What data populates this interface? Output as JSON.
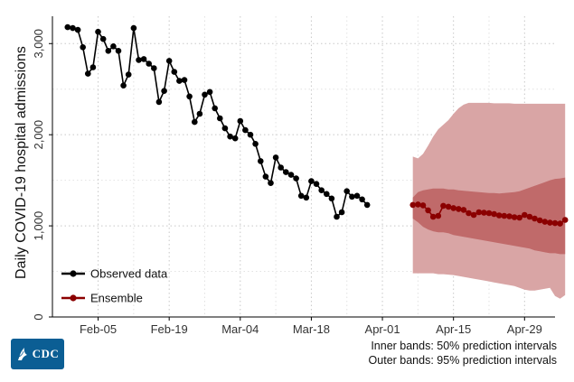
{
  "chart_data": {
    "type": "line",
    "title": "",
    "xlabel": "",
    "ylabel": "Daily COVID-19 hospital admissions",
    "ylim": [
      0,
      3300
    ],
    "yticks": [
      0,
      1000,
      2000,
      3000
    ],
    "ytick_labels": [
      "0",
      "1,000",
      "2,000",
      "3,000"
    ],
    "x_start": "Jan 30",
    "xlim_days": [
      -3,
      96
    ],
    "xticks": [
      {
        "label": "Feb-05",
        "day": 6
      },
      {
        "label": "Feb-19",
        "day": 20
      },
      {
        "label": "Mar-04",
        "day": 34
      },
      {
        "label": "Mar-18",
        "day": 48
      },
      {
        "label": "Apr-01",
        "day": 62
      },
      {
        "label": "Apr-15",
        "day": 76
      },
      {
        "label": "Apr-29",
        "day": 90
      }
    ],
    "legend_position": "bottom-left",
    "series": [
      {
        "name": "Observed data",
        "color": "#000000",
        "start_day": 0,
        "values": [
          3180,
          3170,
          3150,
          2960,
          2670,
          2740,
          3130,
          3050,
          2920,
          2970,
          2920,
          2540,
          2660,
          3170,
          2820,
          2830,
          2780,
          2730,
          2360,
          2480,
          2810,
          2690,
          2590,
          2600,
          2420,
          2140,
          2230,
          2440,
          2470,
          2290,
          2180,
          2070,
          1980,
          1960,
          2150,
          2050,
          2000,
          1900,
          1710,
          1540,
          1470,
          1750,
          1640,
          1590,
          1560,
          1520,
          1330,
          1310,
          1490,
          1460,
          1390,
          1350,
          1300,
          1100,
          1150,
          1380,
          1320,
          1330,
          1290,
          1230
        ]
      },
      {
        "name": "Ensemble",
        "color": "#8b0000",
        "start_day": 68,
        "values": [
          1230,
          1235,
          1225,
          1170,
          1100,
          1110,
          1220,
          1210,
          1195,
          1185,
          1175,
          1140,
          1120,
          1150,
          1145,
          1140,
          1130,
          1115,
          1110,
          1105,
          1095,
          1090,
          1120,
          1100,
          1080,
          1060,
          1045,
          1035,
          1030,
          1025,
          1065
        ],
        "inner_lower": [
          1080,
          1040,
          990,
          960,
          940,
          930,
          930,
          920,
          900,
          890,
          880,
          870,
          860,
          850,
          840,
          830,
          820,
          810,
          800,
          790,
          780,
          770,
          760,
          750,
          730,
          720,
          710,
          700,
          700,
          690,
          690
        ],
        "inner_upper": [
          1310,
          1370,
          1390,
          1400,
          1410,
          1410,
          1410,
          1400,
          1400,
          1390,
          1385,
          1380,
          1375,
          1370,
          1365,
          1360,
          1360,
          1355,
          1360,
          1365,
          1370,
          1380,
          1400,
          1420,
          1440,
          1460,
          1480,
          1500,
          1515,
          1520,
          1530
        ],
        "outer_lower": [
          480,
          480,
          480,
          480,
          480,
          470,
          470,
          465,
          460,
          450,
          440,
          430,
          420,
          410,
          400,
          390,
          380,
          370,
          360,
          350,
          340,
          320,
          300,
          290,
          290,
          300,
          310,
          320,
          230,
          200,
          240
        ],
        "outer_upper": [
          1760,
          1740,
          1790,
          1880,
          1980,
          2060,
          2110,
          2160,
          2230,
          2290,
          2330,
          2350,
          2350,
          2350,
          2350,
          2350,
          2345,
          2345,
          2345,
          2345,
          2340,
          2340,
          2340,
          2340,
          2340,
          2340,
          2340,
          2340,
          2340,
          2340,
          2340
        ]
      }
    ],
    "band_colors": {
      "inner": "#c06a6a",
      "outer": "#d9a5a5"
    }
  },
  "footer": {
    "note_inner": "Inner bands: 50% prediction intervals",
    "note_outer": "Outer bands: 95% prediction intervals"
  },
  "logo": {
    "text": "CDC",
    "color": "#0b5e94"
  }
}
